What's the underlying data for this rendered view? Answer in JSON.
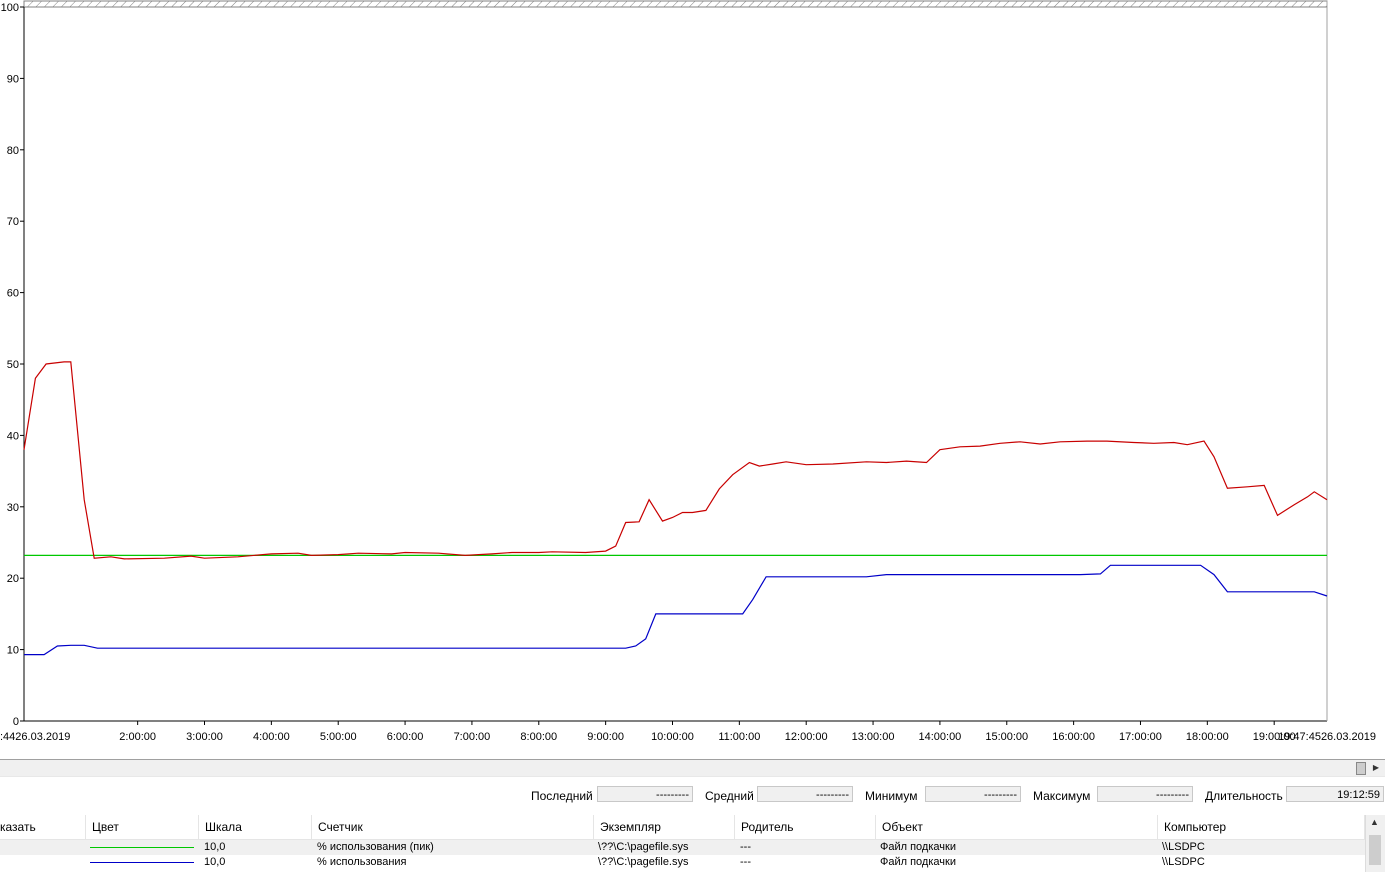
{
  "chart_data": {
    "type": "line",
    "y_ticks": [
      "0",
      "10",
      "20",
      "30",
      "40",
      "50",
      "60",
      "70",
      "80",
      "90",
      "100"
    ],
    "ylim": [
      0,
      100
    ],
    "x_ticks": [
      "2:00:00",
      "3:00:00",
      "4:00:00",
      "5:00:00",
      "6:00:00",
      "7:00:00",
      "8:00:00",
      "9:00:00",
      "10:00:00",
      "11:00:00",
      "12:00:00",
      "13:00:00",
      "14:00:00",
      "15:00:00",
      "16:00:00",
      "17:00:00",
      "18:00:00",
      "19:00:00"
    ],
    "x_start_label": ":4426.03.2019",
    "x_end_label": "19:47:4526.03.2019",
    "x_hours": [
      0.3,
      19.79
    ],
    "grid": false,
    "series": [
      {
        "color": "#00c800",
        "points": [
          [
            0.3,
            23.2
          ],
          [
            19.79,
            23.2
          ]
        ]
      },
      {
        "color": "#c80000",
        "points": [
          [
            0.3,
            38
          ],
          [
            0.47,
            48
          ],
          [
            0.63,
            50
          ],
          [
            0.9,
            50.3
          ],
          [
            1.0,
            50.3
          ],
          [
            1.2,
            31
          ],
          [
            1.35,
            22.8
          ],
          [
            1.6,
            23
          ],
          [
            1.8,
            22.7
          ],
          [
            2.4,
            22.8
          ],
          [
            2.8,
            23.1
          ],
          [
            3.0,
            22.8
          ],
          [
            3.5,
            23
          ],
          [
            4.0,
            23.4
          ],
          [
            4.4,
            23.5
          ],
          [
            4.6,
            23.2
          ],
          [
            5.0,
            23.3
          ],
          [
            5.3,
            23.5
          ],
          [
            5.8,
            23.4
          ],
          [
            6.0,
            23.6
          ],
          [
            6.5,
            23.5
          ],
          [
            6.9,
            23.2
          ],
          [
            7.3,
            23.4
          ],
          [
            7.6,
            23.6
          ],
          [
            8.0,
            23.6
          ],
          [
            8.2,
            23.7
          ],
          [
            8.7,
            23.6
          ],
          [
            9.0,
            23.8
          ],
          [
            9.15,
            24.5
          ],
          [
            9.3,
            27.8
          ],
          [
            9.5,
            27.9
          ],
          [
            9.65,
            31
          ],
          [
            9.85,
            28
          ],
          [
            10.0,
            28.5
          ],
          [
            10.15,
            29.2
          ],
          [
            10.3,
            29.2
          ],
          [
            10.5,
            29.5
          ],
          [
            10.7,
            32.5
          ],
          [
            10.9,
            34.5
          ],
          [
            11.15,
            36.2
          ],
          [
            11.3,
            35.7
          ],
          [
            11.5,
            36
          ],
          [
            11.7,
            36.3
          ],
          [
            12.0,
            35.9
          ],
          [
            12.4,
            36
          ],
          [
            12.9,
            36.3
          ],
          [
            13.2,
            36.2
          ],
          [
            13.5,
            36.4
          ],
          [
            13.8,
            36.2
          ],
          [
            14.0,
            38
          ],
          [
            14.3,
            38.4
          ],
          [
            14.6,
            38.5
          ],
          [
            14.9,
            38.9
          ],
          [
            15.2,
            39.1
          ],
          [
            15.5,
            38.8
          ],
          [
            15.8,
            39.1
          ],
          [
            16.2,
            39.2
          ],
          [
            16.5,
            39.2
          ],
          [
            16.9,
            39
          ],
          [
            17.2,
            38.9
          ],
          [
            17.5,
            39
          ],
          [
            17.7,
            38.7
          ],
          [
            17.95,
            39.2
          ],
          [
            18.1,
            37
          ],
          [
            18.3,
            32.6
          ],
          [
            18.6,
            32.8
          ],
          [
            18.85,
            33
          ],
          [
            19.05,
            28.8
          ],
          [
            19.3,
            30.3
          ],
          [
            19.5,
            31.4
          ],
          [
            19.6,
            32.1
          ],
          [
            19.79,
            31
          ]
        ]
      },
      {
        "color": "#0000c8",
        "points": [
          [
            0.3,
            9.3
          ],
          [
            0.6,
            9.3
          ],
          [
            0.8,
            10.5
          ],
          [
            1.0,
            10.6
          ],
          [
            1.2,
            10.6
          ],
          [
            1.4,
            10.2
          ],
          [
            1.6,
            10.2
          ],
          [
            9.3,
            10.2
          ],
          [
            9.45,
            10.5
          ],
          [
            9.6,
            11.5
          ],
          [
            9.75,
            15
          ],
          [
            10.9,
            15
          ],
          [
            11.05,
            15
          ],
          [
            11.2,
            17
          ],
          [
            11.4,
            20.2
          ],
          [
            12.9,
            20.2
          ],
          [
            13.2,
            20.5
          ],
          [
            16.1,
            20.5
          ],
          [
            16.4,
            20.6
          ],
          [
            16.55,
            21.8
          ],
          [
            17.9,
            21.8
          ],
          [
            18.1,
            20.5
          ],
          [
            18.3,
            18.1
          ],
          [
            19.6,
            18.1
          ],
          [
            19.79,
            17.5
          ]
        ]
      }
    ]
  },
  "scrollbar": {
    "arrow": "▶"
  },
  "stats": {
    "last_label": "Последний",
    "last_value": "---------",
    "avg_label": "Средний",
    "avg_value": "---------",
    "min_label": "Минимум",
    "min_value": "---------",
    "max_label": "Максимум",
    "max_value": "---------",
    "duration_label": "Длительность",
    "duration_value": "19:12:59"
  },
  "legend": {
    "columns": [
      "казать",
      "Цвет",
      "Шкала",
      "Счетчик",
      "Экземпляр",
      "Родитель",
      "Объект",
      "Компьютер"
    ],
    "rows": [
      {
        "color": "#00c800",
        "scale": "10,0",
        "counter": "% использования (пик)",
        "instance": "\\??\\C:\\pagefile.sys",
        "parent": "---",
        "object": "Файл подкачки",
        "computer": "\\\\LSDPC"
      },
      {
        "color": "#0000c8",
        "scale": "10,0",
        "counter": "% использования",
        "instance": "\\??\\C:\\pagefile.sys",
        "parent": "---",
        "object": "Файл подкачки",
        "computer": "\\\\LSDPC"
      }
    ]
  }
}
